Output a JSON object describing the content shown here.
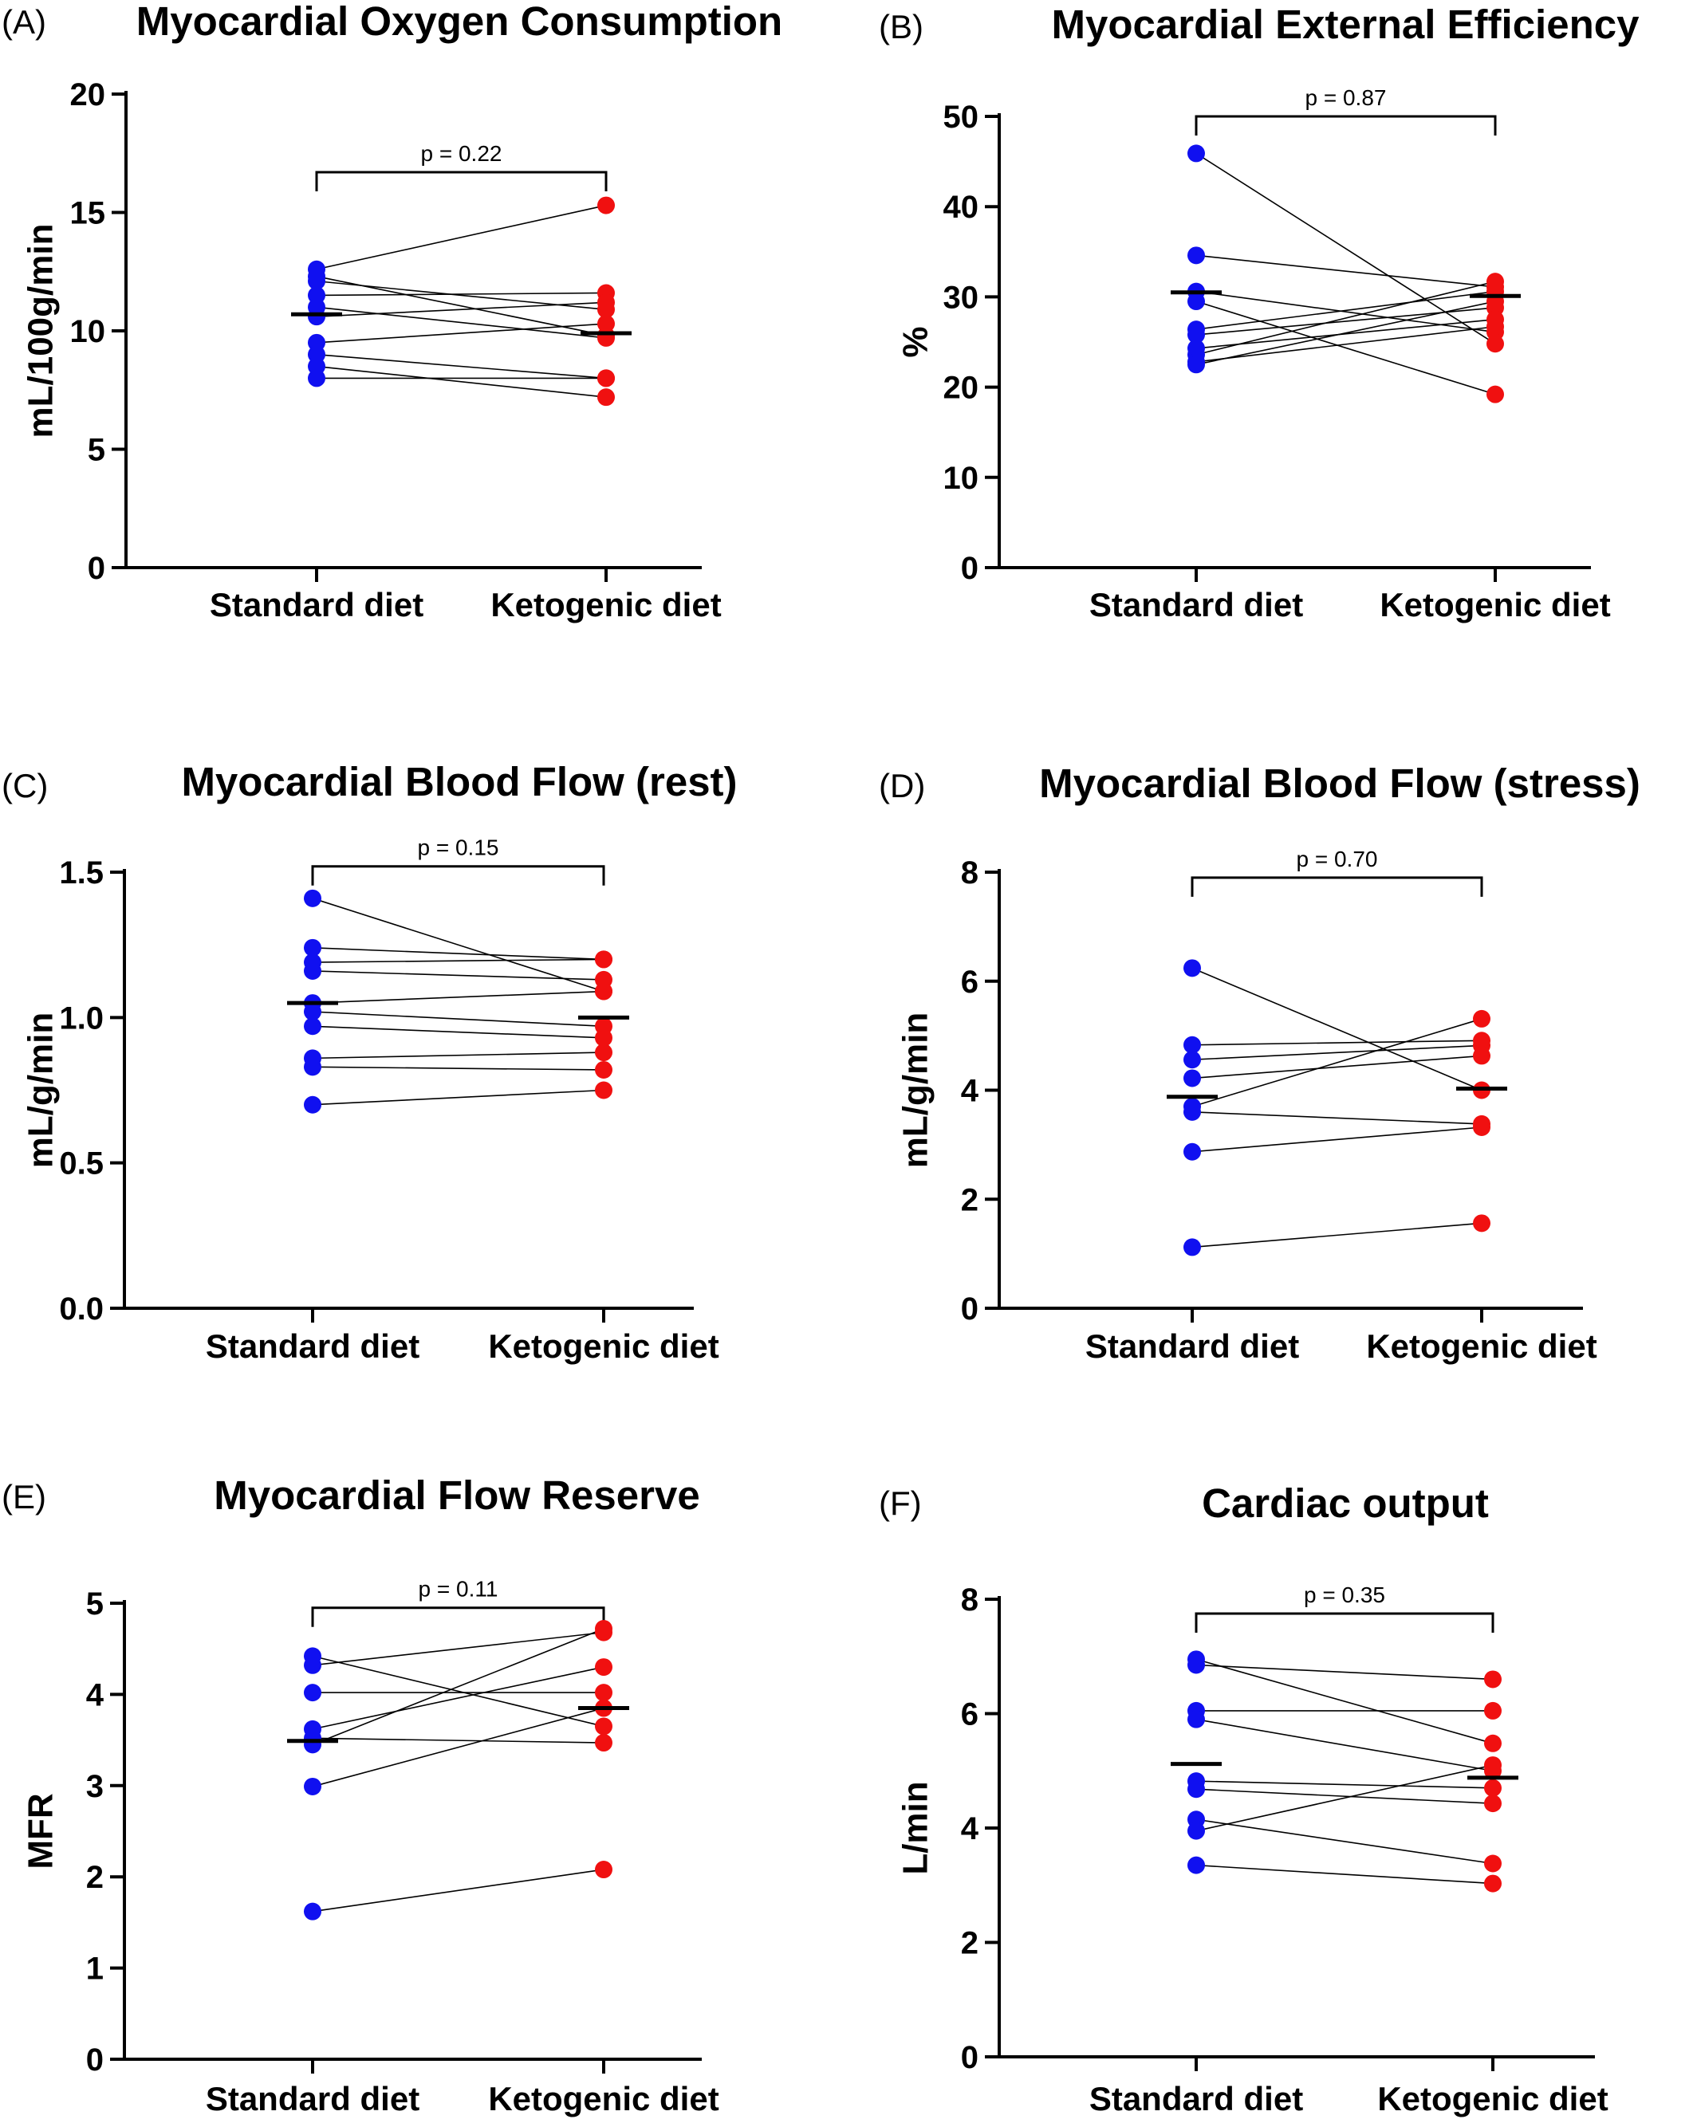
{
  "figure": {
    "colors": {
      "standard": "#1010f0",
      "ketogenic": "#f01010",
      "line": "#000000"
    }
  },
  "chart_data": [
    {
      "type": "scatter",
      "letter": "(A)",
      "title": "Myocardial Oxygen Consumption",
      "ylabel": "mL/100g/min",
      "xlabel": "",
      "categories": [
        "Standard diet",
        "Ketogenic diet"
      ],
      "ylim": [
        0,
        20
      ],
      "yticks": [
        0,
        5,
        10,
        15,
        20
      ],
      "ytick_labels": [
        "0",
        "5",
        "10",
        "15",
        "20"
      ],
      "p_value": "p = 0.22",
      "bracket_y": 16.7,
      "means": [
        10.7,
        9.9
      ],
      "pairs": [
        [
          12.6,
          15.3
        ],
        [
          12.3,
          9.8
        ],
        [
          12.1,
          10.9
        ],
        [
          11.5,
          11.6
        ],
        [
          11.0,
          9.7
        ],
        [
          10.6,
          11.2
        ],
        [
          9.5,
          10.3
        ],
        [
          9.0,
          8.0
        ],
        [
          8.5,
          7.2
        ],
        [
          8.0,
          8.0
        ]
      ]
    },
    {
      "type": "scatter",
      "letter": "(B)",
      "title": "Myocardial External Efficiency",
      "ylabel": "%",
      "xlabel": "",
      "categories": [
        "Standard diet",
        "Ketogenic diet"
      ],
      "ylim": [
        0,
        50
      ],
      "yticks": [
        0,
        10,
        20,
        30,
        40,
        50
      ],
      "ytick_labels": [
        "0",
        "10",
        "20",
        "30",
        "40",
        "50"
      ],
      "p_value": "p = 0.87",
      "bracket_y": 50,
      "means": [
        30.5,
        30.1
      ],
      "pairs": [
        [
          45.9,
          24.8
        ],
        [
          34.6,
          31.1
        ],
        [
          30.6,
          26.1
        ],
        [
          29.5,
          19.2
        ],
        [
          26.4,
          30.6
        ],
        [
          25.8,
          28.8
        ],
        [
          24.3,
          27.5
        ],
        [
          23.6,
          31.7
        ],
        [
          22.8,
          26.7
        ],
        [
          22.5,
          29.5
        ]
      ]
    },
    {
      "type": "scatter",
      "letter": "(C)",
      "title": "Myocardial Blood Flow (rest)",
      "ylabel": "mL/g/min",
      "xlabel": "",
      "categories": [
        "Standard diet",
        "Ketogenic diet"
      ],
      "ylim": [
        0,
        1.5
      ],
      "yticks": [
        0,
        0.5,
        1.0,
        1.5
      ],
      "ytick_labels": [
        "0.0",
        "0.5",
        "1.0",
        "1.5"
      ],
      "p_value": "p = 0.15",
      "bracket_y": 1.52,
      "means": [
        1.05,
        1.0
      ],
      "pairs": [
        [
          1.41,
          1.09
        ],
        [
          1.24,
          1.2
        ],
        [
          1.19,
          1.2
        ],
        [
          1.16,
          1.13
        ],
        [
          1.05,
          1.09
        ],
        [
          1.02,
          0.97
        ],
        [
          0.97,
          0.93
        ],
        [
          0.86,
          0.88
        ],
        [
          0.83,
          0.82
        ],
        [
          0.7,
          0.75
        ]
      ]
    },
    {
      "type": "scatter",
      "letter": "(D)",
      "title": "Myocardial Blood Flow (stress)",
      "ylabel": "mL/g/min",
      "xlabel": "",
      "categories": [
        "Standard diet",
        "Ketogenic diet"
      ],
      "ylim": [
        0,
        8
      ],
      "yticks": [
        0,
        2,
        4,
        6,
        8
      ],
      "ytick_labels": [
        "0",
        "2",
        "4",
        "6",
        "8"
      ],
      "p_value": "p = 0.70",
      "bracket_y": 7.9,
      "means": [
        3.88,
        4.03
      ],
      "pairs": [
        [
          6.24,
          4.0
        ],
        [
          4.83,
          4.91
        ],
        [
          4.56,
          4.82
        ],
        [
          4.22,
          4.63
        ],
        [
          3.7,
          5.31
        ],
        [
          3.6,
          3.38
        ],
        [
          2.87,
          3.32
        ],
        [
          1.12,
          1.56
        ]
      ]
    },
    {
      "type": "scatter",
      "letter": "(E)",
      "title": "Myocardial Flow Reserve",
      "ylabel": "MFR",
      "xlabel": "",
      "categories": [
        "Standard diet",
        "Ketogenic diet"
      ],
      "ylim": [
        0,
        5
      ],
      "yticks": [
        0,
        1,
        2,
        3,
        4,
        5
      ],
      "ytick_labels": [
        "0",
        "1",
        "2",
        "3",
        "4",
        "5"
      ],
      "p_value": "p = 0.11",
      "bracket_y": 4.95,
      "means": [
        3.49,
        3.85
      ],
      "pairs": [
        [
          4.42,
          3.65
        ],
        [
          4.32,
          4.68
        ],
        [
          4.02,
          4.02
        ],
        [
          3.62,
          4.3
        ],
        [
          3.52,
          3.47
        ],
        [
          3.45,
          4.72
        ],
        [
          2.99,
          3.85
        ],
        [
          1.62,
          2.08
        ]
      ]
    },
    {
      "type": "scatter",
      "letter": "(F)",
      "title": "Cardiac output",
      "ylabel": "L/min",
      "xlabel": "",
      "categories": [
        "Standard diet",
        "Ketogenic diet"
      ],
      "ylim": [
        0,
        8
      ],
      "yticks": [
        0,
        2,
        4,
        6,
        8
      ],
      "ytick_labels": [
        "0",
        "2",
        "4",
        "6",
        "8"
      ],
      "p_value": "p = 0.35",
      "bracket_y": 7.75,
      "means": [
        5.12,
        4.88
      ],
      "pairs": [
        [
          6.95,
          5.48
        ],
        [
          6.85,
          6.6
        ],
        [
          6.05,
          6.05
        ],
        [
          5.9,
          5.0
        ],
        [
          4.82,
          4.7
        ],
        [
          4.68,
          4.43
        ],
        [
          4.15,
          3.38
        ],
        [
          3.95,
          5.1
        ],
        [
          3.35,
          3.03
        ]
      ]
    }
  ]
}
